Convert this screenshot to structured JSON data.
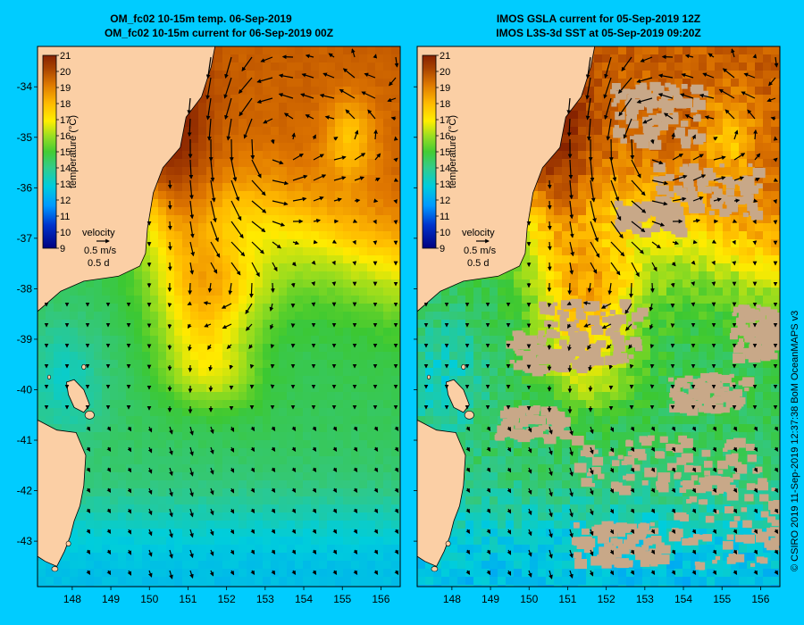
{
  "panels": [
    {
      "id": "left",
      "title_line1": "OM_fc02 10-15m temp. 06-Sep-2019",
      "title_line2": "OM_fc02 10-15m current for 06-Sep-2019 00Z",
      "has_gaps": false
    },
    {
      "id": "right",
      "title_line1": "IMOS GSLA current for 05-Sep-2019 12Z",
      "title_line2": "IMOS L3S-3d SST at 05-Sep-2019 09:20Z",
      "has_gaps": true
    }
  ],
  "map": {
    "lon_range": [
      147.1,
      156.5
    ],
    "lat_range": [
      -43.9,
      -33.2
    ],
    "lon_ticks": [
      "148",
      "149",
      "150",
      "151",
      "152",
      "153",
      "154",
      "155",
      "156"
    ],
    "lat_ticks": [
      "-34",
      "-35",
      "-36",
      "-37",
      "-38",
      "-39",
      "-40",
      "-41",
      "-42",
      "-43"
    ]
  },
  "colorbar": {
    "label": "temperature (°C)",
    "min": 9,
    "max": 21,
    "ticks": [
      "21",
      "20",
      "19",
      "18",
      "17",
      "16",
      "15",
      "14",
      "13",
      "12",
      "11",
      "10",
      "9"
    ]
  },
  "velocity_key": {
    "label": "velocity",
    "speed": "0.5 m/s",
    "duration": "0.5 d"
  },
  "colors": {
    "background": "#00ccff",
    "land": "#fbcfa5",
    "no_data": "#c8a888",
    "arrow": "#000000"
  },
  "credit": "© CSIRO 2019  11-Sep-2019 12:37:38 BoM OceanMAPS v3"
}
